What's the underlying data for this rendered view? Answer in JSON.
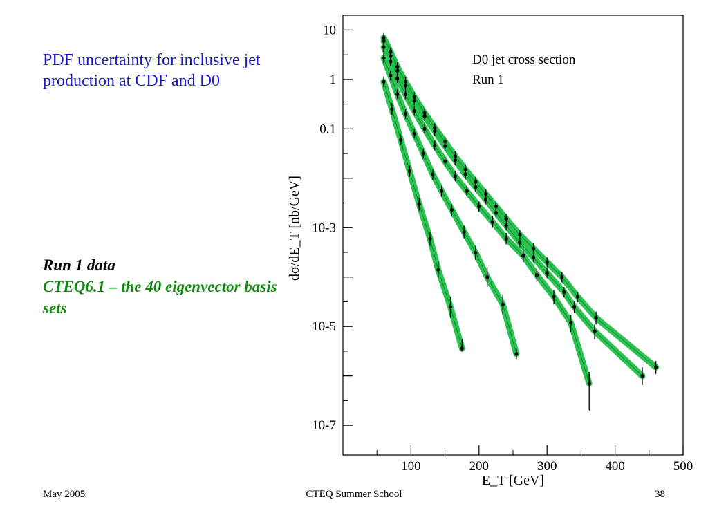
{
  "slide": {
    "title": "PDF uncertainty for inclusive jet production at CDF and D0",
    "caption_line1": "Run 1 data",
    "caption_line2": "CTEQ6.1 – the 40 eigenvector basis sets"
  },
  "footer": {
    "left": "May 2005",
    "center": "CTEQ Summer School",
    "right": "38"
  },
  "chart_data": {
    "type": "scatter",
    "title": "D0 jet cross section",
    "subtitle": "Run 1",
    "xlabel": "E_T [GeV]",
    "ylabel": "dσ/dE_T [nb/GeV]",
    "xlim": [
      0,
      500
    ],
    "ylim_log10": [
      -7.6,
      1.3
    ],
    "yscale": "log",
    "x_ticks": [
      100,
      200,
      300,
      400,
      500
    ],
    "y_tick_labels": [
      {
        "exp": 1,
        "label": "10"
      },
      {
        "exp": 0,
        "label": "1"
      },
      {
        "exp": -1,
        "label": "0.1"
      },
      {
        "exp": -3,
        "label": "10-3"
      },
      {
        "exp": -5,
        "label": "10-5"
      },
      {
        "exp": -7,
        "label": "10-7"
      }
    ],
    "grid": false,
    "band_color": "#22c04a",
    "series": [
      {
        "x": [
          60,
          72,
          85,
          98,
          112,
          128,
          140,
          158,
          175
        ],
        "y": [
          0.9,
          0.25,
          0.06,
          0.014,
          0.003,
          0.0006,
          0.00014,
          2.5e-05,
          3.6e-06
        ],
        "yerr_low": [
          0.7,
          0.19,
          0.047,
          0.0108,
          0.0022,
          0.00043,
          9.5e-05,
          1.5e-05,
          3.1e-06
        ],
        "yerr_high": [
          1.15,
          0.33,
          0.077,
          0.018,
          0.004,
          0.0008,
          0.00021,
          4e-05,
          5.5e-06
        ]
      },
      {
        "x": [
          60,
          70,
          80,
          92,
          105,
          118,
          132,
          145,
          160,
          178,
          195,
          212,
          235,
          255
        ],
        "y": [
          2.7,
          1.2,
          0.5,
          0.2,
          0.08,
          0.032,
          0.012,
          0.0055,
          0.0023,
          0.00082,
          0.00031,
          0.0001,
          2.8e-05,
          2.8e-06
        ],
        "yerr_low": [
          2.15,
          0.96,
          0.4,
          0.16,
          0.064,
          0.025,
          0.0093,
          0.0042,
          0.0017,
          0.00061,
          0.00022,
          6.3e-05,
          1.7e-05,
          2.2e-06
        ],
        "yerr_high": [
          3.4,
          1.5,
          0.63,
          0.25,
          0.1,
          0.04,
          0.015,
          0.007,
          0.003,
          0.0011,
          0.00043,
          0.00016,
          4.5e-05,
          3.4e-06
        ]
      },
      {
        "x": [
          60,
          70,
          80,
          92,
          105,
          120,
          135,
          150,
          165,
          182,
          200,
          220,
          240,
          265,
          285,
          310,
          335,
          362
        ],
        "y": [
          4.5,
          2.3,
          1.05,
          0.5,
          0.23,
          0.1,
          0.046,
          0.022,
          0.011,
          0.0055,
          0.0027,
          0.0013,
          0.0006,
          0.00027,
          0.00011,
          4e-05,
          1.2e-05,
          7e-07
        ],
        "yerr_low": [
          3.6,
          1.85,
          0.85,
          0.4,
          0.185,
          0.08,
          0.037,
          0.0175,
          0.0087,
          0.0043,
          0.0021,
          0.001,
          0.00046,
          0.0002,
          8e-05,
          2.8e-05,
          7.8e-06,
          2e-07
        ],
        "yerr_high": [
          5.6,
          2.9,
          1.3,
          0.63,
          0.29,
          0.125,
          0.058,
          0.028,
          0.014,
          0.007,
          0.0034,
          0.0017,
          0.00078,
          0.00036,
          0.00015,
          5.5e-05,
          1.7e-05,
          1.2e-06
        ]
      },
      {
        "x": [
          60,
          70,
          80,
          92,
          105,
          120,
          135,
          150,
          165,
          180,
          195,
          210,
          225,
          240,
          260,
          280,
          300,
          325,
          340,
          370,
          440
        ],
        "y": [
          6.0,
          3.0,
          1.5,
          0.75,
          0.37,
          0.18,
          0.09,
          0.045,
          0.023,
          0.012,
          0.0066,
          0.0037,
          0.002,
          0.0011,
          0.0005,
          0.00025,
          0.00012,
          5e-05,
          2.5e-05,
          8e-06,
          1e-06
        ],
        "yerr_low": [
          4.8,
          2.4,
          1.2,
          0.6,
          0.3,
          0.145,
          0.072,
          0.036,
          0.0184,
          0.0096,
          0.0053,
          0.003,
          0.0016,
          0.00088,
          0.0004,
          0.0002,
          9.5e-05,
          3.9e-05,
          1.9e-05,
          5.5e-06,
          6.5e-07
        ],
        "yerr_high": [
          7.5,
          3.75,
          1.9,
          0.94,
          0.46,
          0.225,
          0.112,
          0.056,
          0.029,
          0.015,
          0.0082,
          0.0046,
          0.0025,
          0.00137,
          0.00063,
          0.00031,
          0.00015,
          6.3e-05,
          3.2e-05,
          1.1e-05,
          1.5e-06
        ]
      },
      {
        "x": [
          60,
          70,
          80,
          92,
          105,
          120,
          135,
          150,
          165,
          180,
          195,
          210,
          225,
          240,
          260,
          280,
          300,
          322,
          345,
          372,
          460
        ],
        "y": [
          7.0,
          3.6,
          1.8,
          0.9,
          0.44,
          0.21,
          0.105,
          0.055,
          0.028,
          0.015,
          0.0085,
          0.0048,
          0.0027,
          0.0015,
          0.00072,
          0.00038,
          0.0002,
          0.0001,
          4e-05,
          1.5e-05,
          1.5e-06
        ],
        "yerr_low": [
          5.6,
          2.9,
          1.45,
          0.72,
          0.35,
          0.168,
          0.084,
          0.044,
          0.0224,
          0.012,
          0.0068,
          0.0038,
          0.0021,
          0.0012,
          0.00057,
          0.0003,
          0.000158,
          7.8e-05,
          3.1e-05,
          1.1e-05,
          1.1e-06
        ],
        "yerr_high": [
          8.7,
          4.5,
          2.25,
          1.12,
          0.55,
          0.26,
          0.13,
          0.069,
          0.035,
          0.019,
          0.0107,
          0.006,
          0.0034,
          0.0019,
          0.0009,
          0.00048,
          0.00025,
          0.000126,
          5e-05,
          2e-05,
          2e-06
        ]
      }
    ]
  }
}
